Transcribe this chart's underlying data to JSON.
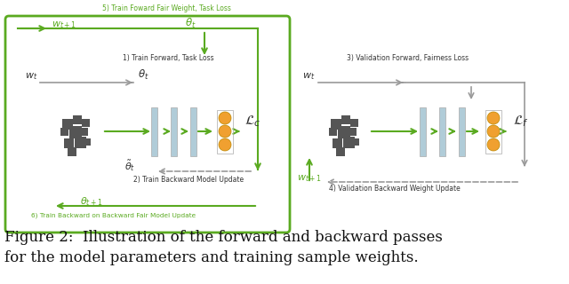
{
  "bg_color": "#ffffff",
  "green_color": "#5aaa20",
  "gray_color": "#999999",
  "light_blue": "#b0ccd8",
  "orange": "#f0a030",
  "dark_sq": "#555555",
  "caption_line1": "Figure 2:  Illustration of the forward and backward passes",
  "caption_line2": "for the model parameters and training sample weights.",
  "label_top5": "5) Train Foward Fair Weight, Task Loss",
  "label_1": "1) Train Forward, Task Loss",
  "label_2": "2) Train Backward Model Update",
  "label_6": "6) Train Backward on Backward Fair Model Update",
  "label_3": "3) Validation Forward, Fairness Loss",
  "label_4": "4) Validation Backward Weight Update"
}
